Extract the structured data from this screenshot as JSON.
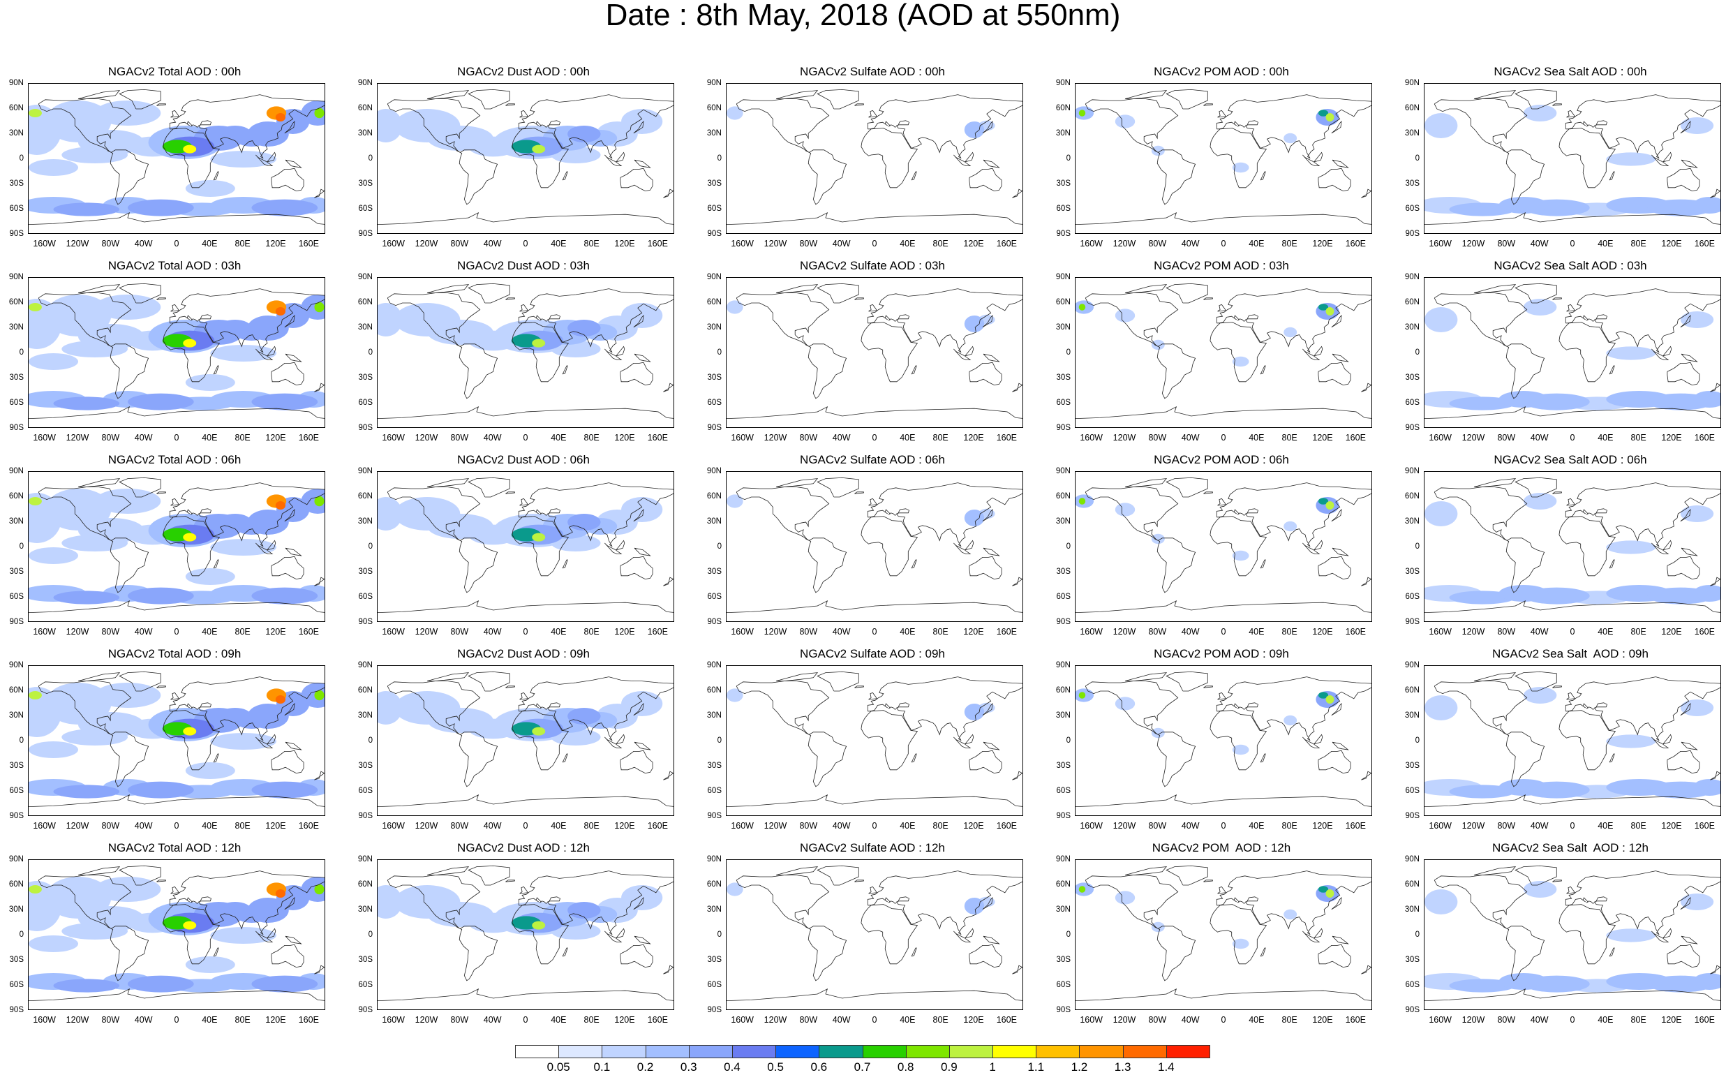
{
  "title": "Date : 8th May, 2018 (AOD at 550nm)",
  "panels": [
    {
      "title": "NGACv2 Total AOD : 00h",
      "field": "total"
    },
    {
      "title": "NGACv2 Dust AOD : 00h",
      "field": "dust"
    },
    {
      "title": "NGACv2 Sulfate AOD : 00h",
      "field": "sulfate"
    },
    {
      "title": "NGACv2 POM AOD : 00h",
      "field": "pom"
    },
    {
      "title": "NGACv2 Sea Salt AOD : 00h",
      "field": "seasalt"
    },
    {
      "title": "NGACv2 Total AOD : 03h",
      "field": "total"
    },
    {
      "title": "NGACv2 Dust AOD : 03h",
      "field": "dust"
    },
    {
      "title": "NGACv2 Sulfate AOD : 03h",
      "field": "sulfate"
    },
    {
      "title": "NGACv2 POM AOD : 03h",
      "field": "pom"
    },
    {
      "title": "NGACv2 Sea Salt AOD : 03h",
      "field": "seasalt"
    },
    {
      "title": "NGACv2 Total AOD : 06h",
      "field": "total"
    },
    {
      "title": "NGACv2 Dust AOD : 06h",
      "field": "dust"
    },
    {
      "title": "NGACv2 Sulfate AOD : 06h",
      "field": "sulfate"
    },
    {
      "title": "NGACv2 POM AOD : 06h",
      "field": "pom"
    },
    {
      "title": "NGACv2 Sea Salt AOD : 06h",
      "field": "seasalt"
    },
    {
      "title": "NGACv2 Total AOD : 09h",
      "field": "total"
    },
    {
      "title": "NGACv2 Dust AOD : 09h",
      "field": "dust"
    },
    {
      "title": "NGACv2 Sulfate AOD : 09h",
      "field": "sulfate"
    },
    {
      "title": "NGACv2 POM AOD : 09h",
      "field": "pom"
    },
    {
      "title": "NGACv2 Sea Salt  AOD : 09h",
      "field": "seasalt"
    },
    {
      "title": "NGACv2 Total AOD : 12h",
      "field": "total"
    },
    {
      "title": "NGACv2 Dust AOD : 12h",
      "field": "dust"
    },
    {
      "title": "NGACv2 Sulfate AOD : 12h",
      "field": "sulfate"
    },
    {
      "title": "NGACv2 POM  AOD : 12h",
      "field": "pom"
    },
    {
      "title": "NGACv2 Sea Salt  AOD : 12h",
      "field": "seasalt"
    }
  ],
  "lat_labels": [
    "90N",
    "60N",
    "30N",
    "0",
    "30S",
    "60S",
    "90S"
  ],
  "lon_labels": [
    "160W",
    "120W",
    "80W",
    "40W",
    "0",
    "40E",
    "80E",
    "120E",
    "160E"
  ],
  "lat_values": [
    90,
    60,
    30,
    0,
    -30,
    -60,
    -90
  ],
  "lon_values": [
    -160,
    -120,
    -80,
    -40,
    0,
    40,
    80,
    120,
    160
  ],
  "colorbar": {
    "labels": [
      "0.05",
      "0.1",
      "0.2",
      "0.3",
      "0.4",
      "0.5",
      "0.6",
      "0.7",
      "0.8",
      "0.9",
      "1",
      "1.1",
      "1.2",
      "1.3",
      "1.4"
    ],
    "colors": [
      "#ffffff",
      "#dde8ff",
      "#c0d4ff",
      "#a3bfff",
      "#8aa6fb",
      "#6a7cf1",
      "#0d64ff",
      "#0a9a8c",
      "#28d000",
      "#7ee600",
      "#bdf240",
      "#ffff00",
      "#ffc000",
      "#ff9400",
      "#ff6a00",
      "#ff2000"
    ]
  }
}
